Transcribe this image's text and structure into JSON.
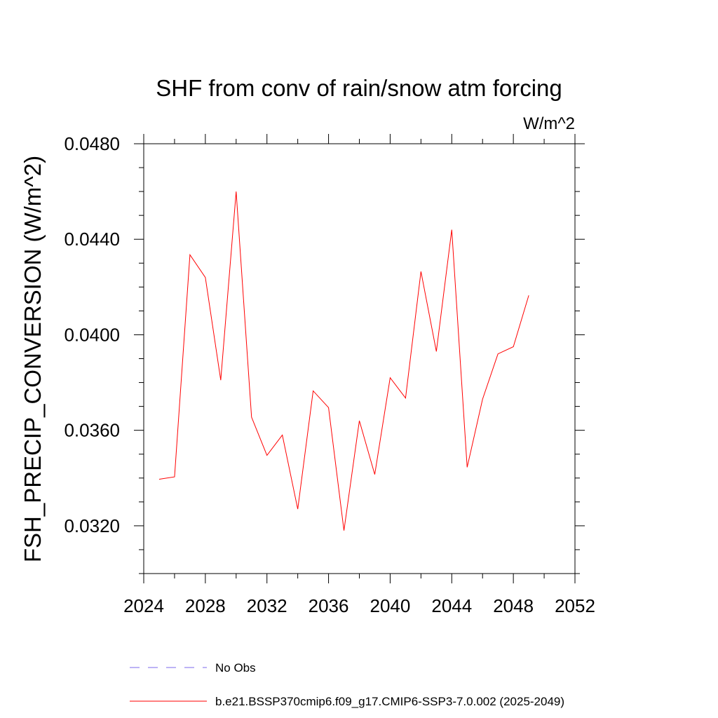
{
  "chart_data": {
    "type": "line",
    "title": "SHF from conv of rain/snow atm forcing",
    "units_label": "W/m^2",
    "ylabel": "FSH_PRECIP_CONVERSION  (W/m^2)",
    "xlabel": "",
    "xlim": [
      2024,
      2052
    ],
    "ylim": [
      0.03,
      0.0485
    ],
    "x_ticks": [
      "2024",
      "2028",
      "2032",
      "2036",
      "2040",
      "2044",
      "2048",
      "2052"
    ],
    "y_ticks": [
      "0.0320",
      "0.0360",
      "0.0400",
      "0.0440",
      "0.0480"
    ],
    "grid": false,
    "line_color": "#ff0000",
    "series": [
      {
        "name": "b.e21.BSSP370cmip6.f09_g17.CMIP6-SSP3-7.0.002 (2025-2049)",
        "x": [
          2025,
          2026,
          2027,
          2028,
          2029,
          2030,
          2031,
          2032,
          2033,
          2034,
          2035,
          2036,
          2037,
          2038,
          2039,
          2040,
          2041,
          2042,
          2043,
          2044,
          2045,
          2046,
          2047,
          2048,
          2049
        ],
        "values": [
          0.03395,
          0.03405,
          0.04335,
          0.0424,
          0.0381,
          0.046,
          0.03655,
          0.03495,
          0.0358,
          0.0327,
          0.03765,
          0.03695,
          0.0318,
          0.0364,
          0.03415,
          0.0382,
          0.03735,
          0.04265,
          0.0393,
          0.0444,
          0.03445,
          0.0373,
          0.0392,
          0.0395,
          0.04165
        ]
      }
    ],
    "legend": {
      "placement": "bottom-left",
      "entries": [
        {
          "label": "No Obs",
          "style": "dashed",
          "color": "#7b68ee"
        },
        {
          "label": "b.e21.BSSP370cmip6.f09_g17.CMIP6-SSP3-7.0.002 (2025-2049)",
          "style": "solid",
          "color": "#ff0000"
        }
      ]
    }
  }
}
